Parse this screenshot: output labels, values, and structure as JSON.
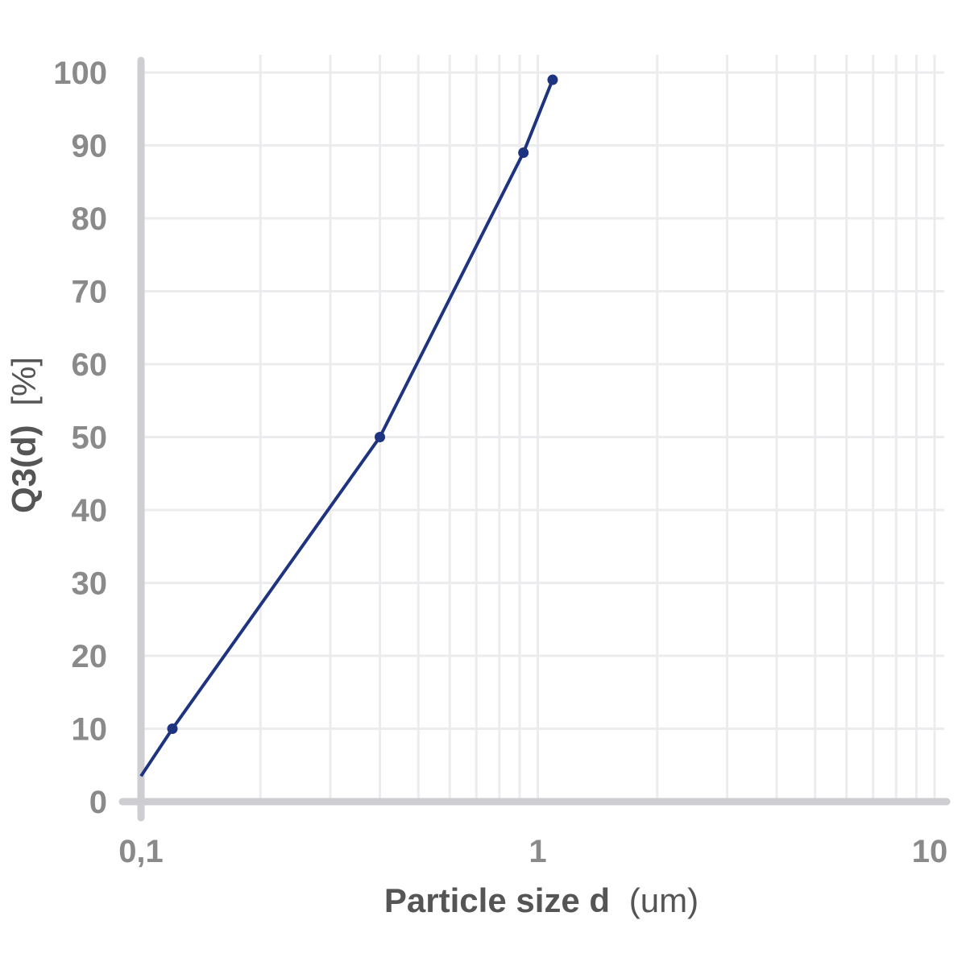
{
  "chart_data": {
    "type": "line",
    "title": "",
    "xlabel": {
      "main": "Particle size d",
      "unit": "(um)"
    },
    "ylabel": {
      "main": "Q3(d)",
      "unit": "[%]"
    },
    "x_scale": "log",
    "xlim": [
      0.1,
      10
    ],
    "ylim": [
      0,
      100
    ],
    "x_ticks": [
      {
        "value": 0.1,
        "label": "0,1"
      },
      {
        "value": 1,
        "label": "1"
      },
      {
        "value": 10,
        "label": "10"
      }
    ],
    "y_ticks": [
      {
        "value": 0,
        "label": "0"
      },
      {
        "value": 10,
        "label": "10"
      },
      {
        "value": 20,
        "label": "20"
      },
      {
        "value": 30,
        "label": "30"
      },
      {
        "value": 40,
        "label": "40"
      },
      {
        "value": 50,
        "label": "50"
      },
      {
        "value": 60,
        "label": "60"
      },
      {
        "value": 70,
        "label": "70"
      },
      {
        "value": 80,
        "label": "80"
      },
      {
        "value": 90,
        "label": "90"
      },
      {
        "value": 100,
        "label": "100"
      }
    ],
    "grid": true,
    "series": [
      {
        "color": "#1f3480",
        "line_start": {
          "x": 0.1,
          "y": 3.5
        },
        "points": [
          {
            "x": 0.12,
            "y": 10
          },
          {
            "x": 0.4,
            "y": 50
          },
          {
            "x": 0.92,
            "y": 89
          },
          {
            "x": 1.09,
            "y": 99
          }
        ]
      }
    ]
  }
}
